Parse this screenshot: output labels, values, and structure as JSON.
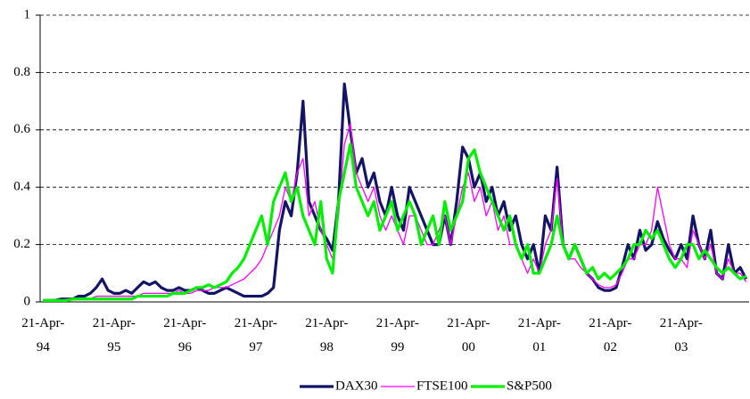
{
  "chart_data": {
    "type": "line",
    "categories": [
      "21-Apr-94",
      null,
      null,
      null,
      null,
      null,
      null,
      null,
      null,
      null,
      null,
      null,
      "21-Apr-95",
      null,
      null,
      null,
      null,
      null,
      null,
      null,
      null,
      null,
      null,
      null,
      "21-Apr-96",
      null,
      null,
      null,
      null,
      null,
      null,
      null,
      null,
      null,
      null,
      null,
      "21-Apr-97",
      null,
      null,
      null,
      null,
      null,
      null,
      null,
      null,
      null,
      null,
      null,
      "21-Apr-98",
      null,
      null,
      null,
      null,
      null,
      null,
      null,
      null,
      null,
      null,
      null,
      "21-Apr-99",
      null,
      null,
      null,
      null,
      null,
      null,
      null,
      null,
      null,
      null,
      null,
      "21-Apr-00",
      null,
      null,
      null,
      null,
      null,
      null,
      null,
      null,
      null,
      null,
      null,
      "21-Apr-01",
      null,
      null,
      null,
      null,
      null,
      null,
      null,
      null,
      null,
      null,
      null,
      "21-Apr-02",
      null,
      null,
      null,
      null,
      null,
      null,
      null,
      null,
      null,
      null,
      null,
      "21-Apr-03",
      null,
      null,
      null,
      null,
      null,
      null,
      null,
      null,
      null,
      null,
      null
    ],
    "series": [
      {
        "name": "DAX30",
        "color": "#141466",
        "width": 3.2,
        "values": [
          0.005,
          0.005,
          0.005,
          0.01,
          0.01,
          0.01,
          0.02,
          0.02,
          0.03,
          0.05,
          0.08,
          0.04,
          0.03,
          0.03,
          0.04,
          0.03,
          0.05,
          0.07,
          0.06,
          0.07,
          0.05,
          0.04,
          0.04,
          0.05,
          0.04,
          0.04,
          0.05,
          0.04,
          0.03,
          0.03,
          0.04,
          0.05,
          0.04,
          0.03,
          0.02,
          0.02,
          0.02,
          0.02,
          0.03,
          0.05,
          0.25,
          0.35,
          0.3,
          0.45,
          0.7,
          0.35,
          0.3,
          0.25,
          0.22,
          0.18,
          0.35,
          0.76,
          0.6,
          0.45,
          0.5,
          0.4,
          0.45,
          0.35,
          0.3,
          0.4,
          0.3,
          0.25,
          0.4,
          0.35,
          0.3,
          0.25,
          0.2,
          0.2,
          0.3,
          0.2,
          0.35,
          0.54,
          0.5,
          0.4,
          0.45,
          0.35,
          0.4,
          0.3,
          0.35,
          0.25,
          0.3,
          0.2,
          0.15,
          0.2,
          0.1,
          0.3,
          0.25,
          0.47,
          0.2,
          0.15,
          0.2,
          0.15,
          0.1,
          0.08,
          0.05,
          0.04,
          0.04,
          0.05,
          0.12,
          0.2,
          0.15,
          0.25,
          0.18,
          0.2,
          0.28,
          0.22,
          0.18,
          0.15,
          0.2,
          0.15,
          0.3,
          0.2,
          0.15,
          0.25,
          0.1,
          0.08,
          0.2,
          0.1,
          0.12,
          0.08
        ]
      },
      {
        "name": "FTSE100",
        "color": "#ff00ff",
        "width": 1.3,
        "values": [
          0.005,
          0.005,
          0.005,
          0.005,
          0.01,
          0.01,
          0.01,
          0.01,
          0.01,
          0.02,
          0.02,
          0.02,
          0.02,
          0.02,
          0.02,
          0.02,
          0.02,
          0.03,
          0.03,
          0.03,
          0.03,
          0.03,
          0.03,
          0.04,
          0.03,
          0.03,
          0.04,
          0.04,
          0.04,
          0.05,
          0.05,
          0.05,
          0.06,
          0.07,
          0.08,
          0.1,
          0.12,
          0.15,
          0.2,
          0.25,
          0.3,
          0.4,
          0.35,
          0.45,
          0.5,
          0.3,
          0.35,
          0.25,
          0.2,
          0.15,
          0.3,
          0.55,
          0.62,
          0.45,
          0.4,
          0.35,
          0.4,
          0.3,
          0.25,
          0.3,
          0.25,
          0.2,
          0.3,
          0.3,
          0.25,
          0.2,
          0.2,
          0.25,
          0.3,
          0.2,
          0.3,
          0.4,
          0.45,
          0.35,
          0.4,
          0.3,
          0.35,
          0.25,
          0.3,
          0.2,
          0.2,
          0.15,
          0.1,
          0.15,
          0.1,
          0.2,
          0.25,
          0.43,
          0.2,
          0.15,
          0.15,
          0.12,
          0.1,
          0.08,
          0.06,
          0.05,
          0.05,
          0.06,
          0.1,
          0.15,
          0.15,
          0.2,
          0.2,
          0.25,
          0.4,
          0.3,
          0.2,
          0.15,
          0.15,
          0.12,
          0.25,
          0.2,
          0.15,
          0.2,
          0.1,
          0.08,
          0.15,
          0.1,
          0.1,
          0.07
        ]
      },
      {
        "name": "S&P500",
        "color": "#00ee00",
        "width": 3.2,
        "values": [
          0.005,
          0.005,
          0.005,
          0.005,
          0.005,
          0.01,
          0.01,
          0.01,
          0.01,
          0.01,
          0.01,
          0.01,
          0.01,
          0.01,
          0.01,
          0.01,
          0.02,
          0.02,
          0.02,
          0.02,
          0.02,
          0.02,
          0.03,
          0.03,
          0.03,
          0.04,
          0.05,
          0.05,
          0.06,
          0.05,
          0.06,
          0.07,
          0.1,
          0.12,
          0.15,
          0.2,
          0.25,
          0.3,
          0.2,
          0.35,
          0.4,
          0.45,
          0.35,
          0.4,
          0.3,
          0.25,
          0.2,
          0.35,
          0.15,
          0.1,
          0.35,
          0.45,
          0.55,
          0.4,
          0.35,
          0.3,
          0.35,
          0.25,
          0.3,
          0.35,
          0.25,
          0.3,
          0.35,
          0.3,
          0.2,
          0.25,
          0.3,
          0.2,
          0.35,
          0.25,
          0.3,
          0.35,
          0.5,
          0.53,
          0.45,
          0.4,
          0.35,
          0.3,
          0.25,
          0.3,
          0.2,
          0.15,
          0.2,
          0.1,
          0.1,
          0.15,
          0.2,
          0.3,
          0.2,
          0.15,
          0.2,
          0.15,
          0.1,
          0.12,
          0.08,
          0.1,
          0.08,
          0.1,
          0.12,
          0.15,
          0.2,
          0.2,
          0.25,
          0.22,
          0.25,
          0.2,
          0.15,
          0.12,
          0.15,
          0.2,
          0.2,
          0.15,
          0.18,
          0.15,
          0.12,
          0.1,
          0.12,
          0.1,
          0.08,
          0.09
        ]
      }
    ],
    "ylim": [
      0,
      1
    ],
    "yticks": [
      0,
      0.2,
      0.4,
      0.6,
      0.8,
      1
    ],
    "grid": true,
    "legend": "bottom"
  }
}
